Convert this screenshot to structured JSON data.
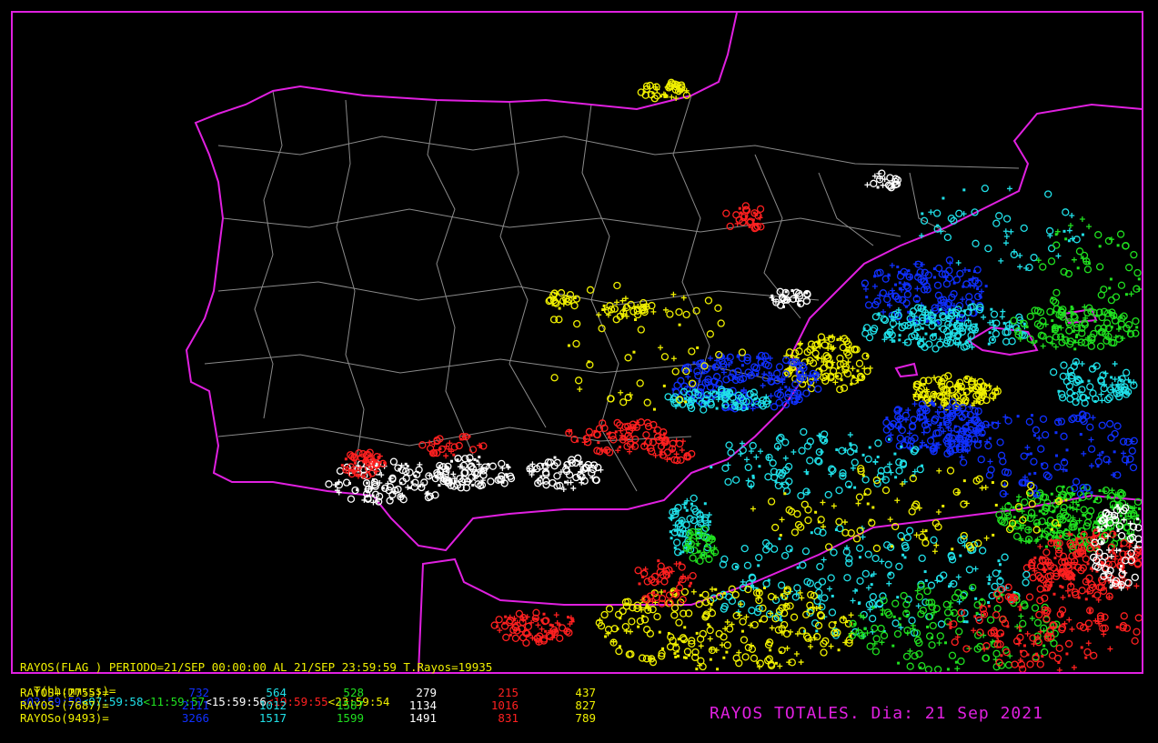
{
  "header": {
    "period": "RAYOS(FLAG ) PERIODO=21/SEP 00:00:00 AL 21/SEP 23:59:59 T.Rayos=19935",
    "time_label": "T(hh:mm:ss)=",
    "time_bins": [
      "<03:59:59",
      "<07:59:58",
      "<11:59:57",
      "<15:59:56",
      "<19:59:55",
      "<23:59:54"
    ]
  },
  "table": {
    "rows": [
      {
        "label": "RAYOS+(2755)=",
        "values": [
          732,
          564,
          528,
          279,
          215,
          437
        ]
      },
      {
        "label": "RAYOS-(7687)=",
        "values": [
          2111,
          1012,
          1587,
          1134,
          1016,
          827
        ]
      },
      {
        "label": "RAYOSo(9493)=",
        "values": [
          3266,
          1517,
          1599,
          1491,
          831,
          789
        ]
      }
    ]
  },
  "title": "RAYOS TOTALES. Dia: 21 Sep 2021"
}
